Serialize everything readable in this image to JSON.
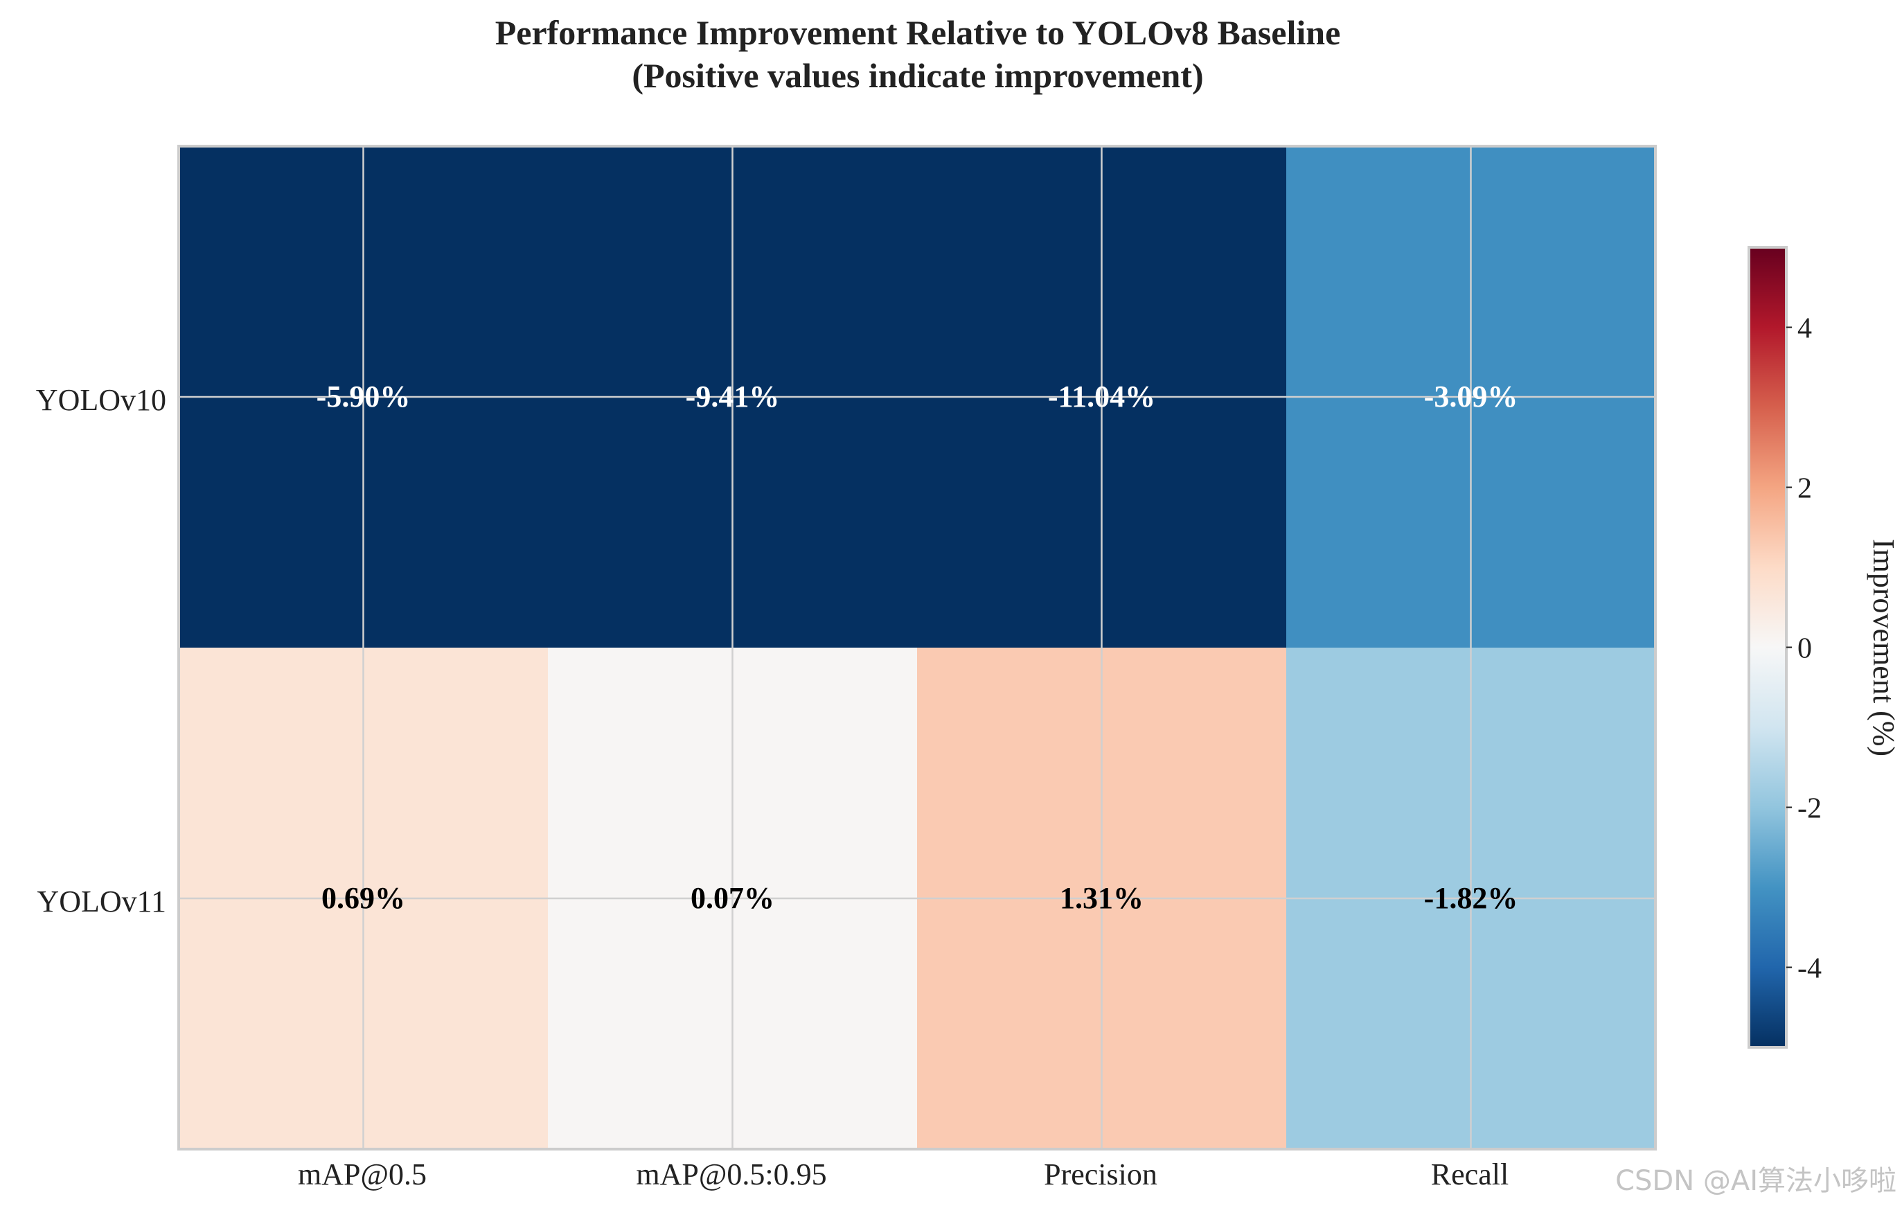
{
  "chart_data": {
    "type": "heatmap",
    "title": "Performance Improvement Relative to YOLOv8 Baseline",
    "subtitle": "(Positive values indicate improvement)",
    "rows": [
      "YOLOv10",
      "YOLOv11"
    ],
    "columns": [
      "mAP@0.5",
      "mAP@0.5:0.95",
      "Precision",
      "Recall"
    ],
    "values": [
      [
        -5.9,
        -9.41,
        -11.04,
        -3.09
      ],
      [
        0.69,
        0.07,
        1.31,
        -1.82
      ]
    ],
    "cell_labels": [
      [
        "-5.90%",
        "-9.41%",
        "-11.04%",
        "-3.09%"
      ],
      [
        "0.69%",
        "0.07%",
        "1.31%",
        "-1.82%"
      ]
    ],
    "colormap": "RdBu_r",
    "color_range": [
      -5,
      5
    ],
    "colorbar": {
      "label": "Improvement (%)",
      "ticks": [
        4,
        2,
        0,
        -2,
        -4
      ],
      "tick_labels": [
        "4",
        "2",
        "0",
        "-2",
        "-4"
      ]
    },
    "grid": true
  },
  "watermark": "CSDN @AI算法小哆啦",
  "colors": {
    "grid": "#d0d0d0",
    "frame": "#cccccc",
    "text": "#222222",
    "dark_label": "#000000",
    "light_label": "#ffffff"
  }
}
